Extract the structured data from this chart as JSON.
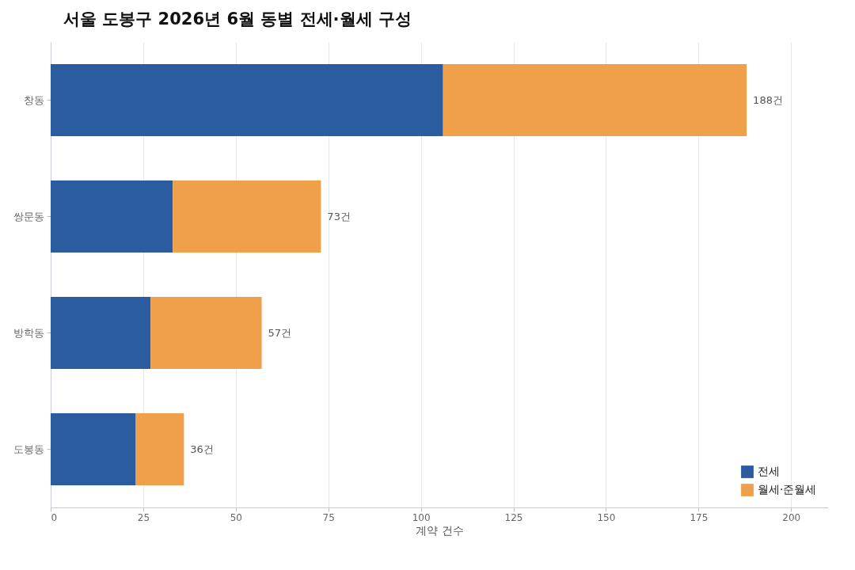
{
  "chart_data": {
    "type": "bar",
    "orientation": "horizontal",
    "stacked": true,
    "title": "서울 도봉구 2026년 6월 동별 전세·월세 구성",
    "xlabel": "계약 건수",
    "categories": [
      "창동",
      "쌍문동",
      "방학동",
      "도봉동"
    ],
    "series": [
      {
        "name": "전세",
        "color": "#2c5ca0",
        "values": [
          106,
          33,
          27,
          23
        ]
      },
      {
        "name": "월세·준월세",
        "color": "#f0a04b",
        "values": [
          82,
          40,
          30,
          13
        ]
      }
    ],
    "totals": [
      "188건",
      "73건",
      "57건",
      "36건"
    ],
    "xlim": [
      0,
      210
    ],
    "xticks": [
      0,
      25,
      50,
      75,
      100,
      125,
      150,
      175,
      200
    ],
    "grid": "x",
    "legend": "bottom right"
  }
}
